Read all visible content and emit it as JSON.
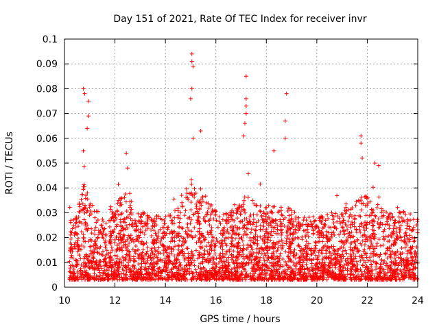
{
  "chart_data": {
    "type": "scatter",
    "title": "Day 151 of 2021, Rate Of TEC Index for receiver invr",
    "xlabel": "GPS time / hours",
    "ylabel": "ROTI / TECUs",
    "xlim": [
      10,
      24
    ],
    "ylim": [
      0,
      0.1
    ],
    "x_ticks": [
      10,
      12,
      14,
      16,
      18,
      20,
      22,
      24
    ],
    "x_tick_labels": [
      "10",
      "12",
      "14",
      "16",
      "18",
      "20",
      "22",
      "24"
    ],
    "y_ticks": [
      0,
      0.01,
      0.02,
      0.03,
      0.04,
      0.05,
      0.06,
      0.07,
      0.08,
      0.09,
      0.1
    ],
    "y_tick_labels": [
      "0",
      "0.01",
      "0.02",
      "0.03",
      "0.04",
      "0.05",
      "0.06",
      "0.07",
      "0.08",
      "0.09",
      "0.1"
    ],
    "grid": true,
    "marker": "+",
    "color": "#ff0000",
    "series": [
      {
        "name": "ROTI",
        "note": "dense cloud of samples between 10.2 h and 24 h, mostly 0.003–0.03 TECU/min",
        "peaks": [
          {
            "x": 10.75,
            "y": 0.08
          },
          {
            "x": 10.8,
            "y": 0.078
          },
          {
            "x": 10.95,
            "y": 0.075
          },
          {
            "x": 10.95,
            "y": 0.069
          },
          {
            "x": 10.9,
            "y": 0.064
          },
          {
            "x": 10.75,
            "y": 0.055
          },
          {
            "x": 12.45,
            "y": 0.054
          },
          {
            "x": 12.5,
            "y": 0.048
          },
          {
            "x": 15.05,
            "y": 0.094
          },
          {
            "x": 15.05,
            "y": 0.091
          },
          {
            "x": 15.1,
            "y": 0.089
          },
          {
            "x": 15.05,
            "y": 0.08
          },
          {
            "x": 15.0,
            "y": 0.076
          },
          {
            "x": 15.4,
            "y": 0.063
          },
          {
            "x": 15.1,
            "y": 0.06
          },
          {
            "x": 17.2,
            "y": 0.085
          },
          {
            "x": 17.2,
            "y": 0.076
          },
          {
            "x": 17.2,
            "y": 0.073
          },
          {
            "x": 17.2,
            "y": 0.07
          },
          {
            "x": 17.15,
            "y": 0.066
          },
          {
            "x": 17.1,
            "y": 0.061
          },
          {
            "x": 18.8,
            "y": 0.078
          },
          {
            "x": 18.75,
            "y": 0.067
          },
          {
            "x": 18.75,
            "y": 0.06
          },
          {
            "x": 18.3,
            "y": 0.055
          },
          {
            "x": 21.75,
            "y": 0.061
          },
          {
            "x": 21.75,
            "y": 0.058
          },
          {
            "x": 21.8,
            "y": 0.052
          },
          {
            "x": 22.3,
            "y": 0.05
          },
          {
            "x": 22.45,
            "y": 0.049
          }
        ]
      }
    ]
  }
}
